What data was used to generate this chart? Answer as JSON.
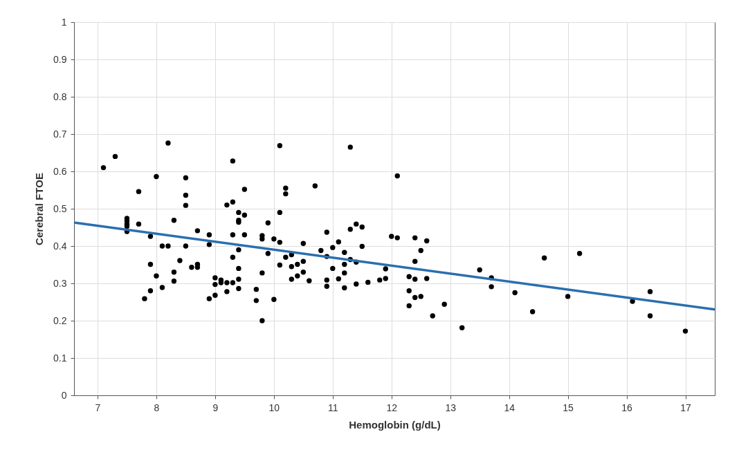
{
  "chart_data": {
    "type": "scatter",
    "xlabel": "Hemoglobin (g/dL)",
    "ylabel": "Cerebral FTOE",
    "xlim": [
      6.6,
      17.5
    ],
    "ylim": [
      0,
      1
    ],
    "xticks": [
      7,
      8,
      9,
      10,
      11,
      12,
      13,
      14,
      15,
      16,
      17
    ],
    "yticks": [
      0,
      0.1,
      0.2,
      0.3,
      0.4,
      0.5,
      0.6,
      0.7,
      0.8,
      0.9,
      1
    ],
    "grid": true,
    "marker": "circle",
    "series": [
      {
        "color": "#000000",
        "x": [
          7.1,
          7.3,
          7.5,
          7.5,
          7.5,
          7.5,
          7.5,
          7.7,
          7.7,
          7.9,
          7.9,
          7.9,
          7.8,
          8.0,
          8.0,
          8.1,
          8.1,
          8.2,
          8.3,
          8.3,
          8.3,
          8.4,
          8.5,
          8.5,
          8.5,
          8.5,
          8.6,
          8.7,
          8.7,
          8.7,
          8.9,
          8.9,
          8.9,
          9.0,
          9.0,
          9.0,
          8.2,
          9.3,
          9.5,
          9.2,
          9.3,
          9.4,
          9.5,
          9.4,
          9.4,
          9.3,
          9.5,
          9.4,
          9.3,
          9.4,
          9.4,
          9.4,
          9.1,
          9.1,
          9.2,
          9.2,
          9.3,
          9.7,
          9.7,
          9.8,
          9.8,
          9.8,
          9.8,
          9.9,
          9.9,
          10.0,
          10.0,
          10.1,
          10.1,
          10.1,
          10.2,
          10.2,
          10.2,
          10.3,
          10.3,
          10.3,
          10.4,
          10.4,
          10.5,
          10.5,
          10.5,
          10.6,
          10.7,
          10.8,
          10.9,
          10.9,
          10.9,
          10.9,
          11.0,
          11.0,
          11.1,
          11.1,
          11.2,
          11.2,
          11.2,
          11.2,
          11.3,
          11.3,
          11.4,
          11.4,
          11.4,
          11.5,
          11.5,
          11.6,
          11.3,
          10.1,
          12.1,
          12.0,
          12.1,
          12.4,
          12.6,
          12.5,
          12.4,
          11.9,
          11.8,
          11.9,
          12.3,
          12.4,
          12.6,
          12.3,
          12.4,
          12.5,
          12.3,
          12.7,
          12.9,
          13.2,
          13.5,
          13.7,
          13.7,
          14.1,
          14.6,
          15.2,
          14.4,
          15.0,
          16.1,
          16.4,
          16.4,
          17.0
        ],
        "values": [
          0.61,
          0.64,
          0.474,
          0.467,
          0.459,
          0.453,
          0.439,
          0.546,
          0.459,
          0.426,
          0.351,
          0.28,
          0.259,
          0.586,
          0.32,
          0.4,
          0.289,
          0.4,
          0.469,
          0.33,
          0.306,
          0.361,
          0.583,
          0.536,
          0.509,
          0.4,
          0.343,
          0.441,
          0.351,
          0.343,
          0.43,
          0.404,
          0.259,
          0.315,
          0.297,
          0.268,
          0.676,
          0.628,
          0.552,
          0.51,
          0.518,
          0.49,
          0.483,
          0.469,
          0.464,
          0.43,
          0.43,
          0.39,
          0.37,
          0.34,
          0.311,
          0.286,
          0.309,
          0.302,
          0.302,
          0.278,
          0.302,
          0.284,
          0.254,
          0.2,
          0.328,
          0.428,
          0.419,
          0.462,
          0.38,
          0.419,
          0.257,
          0.49,
          0.41,
          0.349,
          0.555,
          0.54,
          0.37,
          0.377,
          0.345,
          0.311,
          0.351,
          0.32,
          0.407,
          0.359,
          0.33,
          0.307,
          0.561,
          0.388,
          0.437,
          0.372,
          0.309,
          0.292,
          0.396,
          0.34,
          0.411,
          0.312,
          0.383,
          0.351,
          0.328,
          0.288,
          0.445,
          0.364,
          0.459,
          0.357,
          0.298,
          0.451,
          0.399,
          0.303,
          0.665,
          0.669,
          0.588,
          0.426,
          0.422,
          0.422,
          0.414,
          0.388,
          0.359,
          0.339,
          0.309,
          0.313,
          0.318,
          0.311,
          0.313,
          0.28,
          0.262,
          0.265,
          0.24,
          0.213,
          0.244,
          0.181,
          0.336,
          0.315,
          0.291,
          0.275,
          0.368,
          0.38,
          0.224,
          0.265,
          0.252,
          0.278,
          0.213,
          0.172
        ]
      },
      {
        "type": "line",
        "marker": "none",
        "line_style": "solid",
        "color": "#2a6fae",
        "x": [
          6.6,
          17.5
        ],
        "values": [
          0.463,
          0.23
        ]
      }
    ]
  }
}
